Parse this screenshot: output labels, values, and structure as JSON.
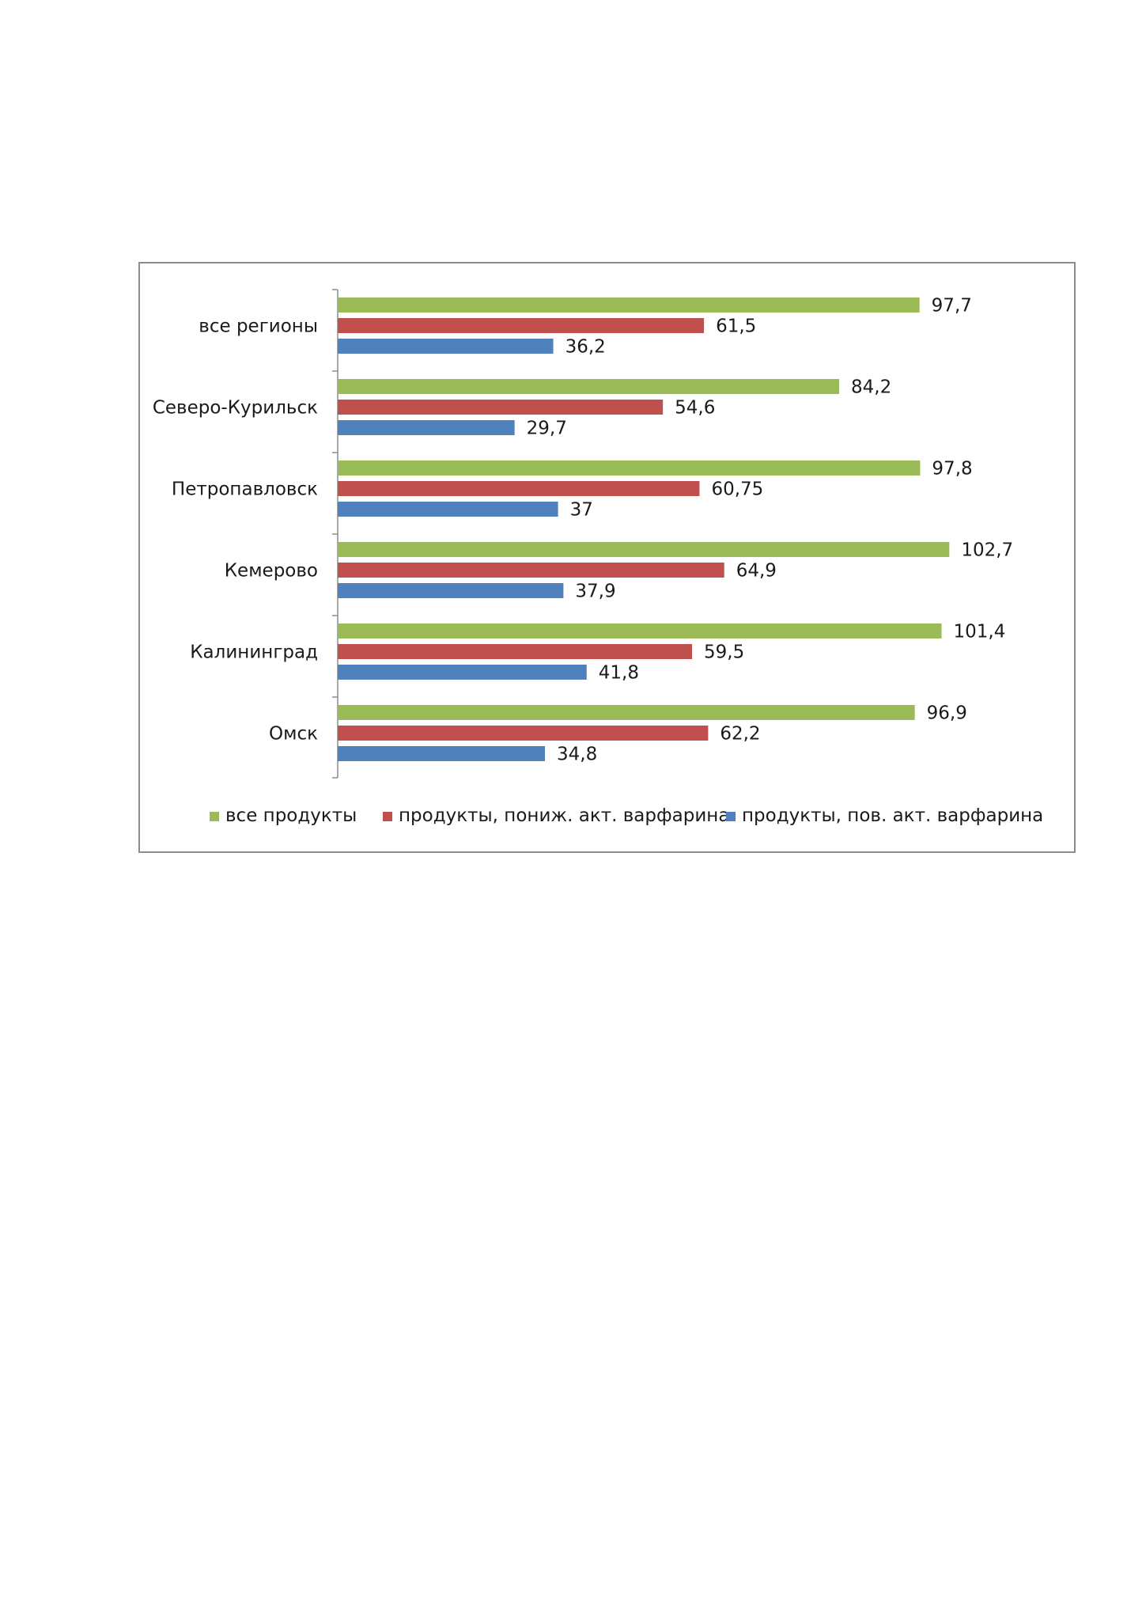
{
  "chart_data": {
    "type": "bar",
    "orientation": "horizontal",
    "categories": [
      "все регионы",
      "Северо-Курильск",
      "Петропавловск",
      "Кемерово",
      "Калининград",
      "Омск"
    ],
    "series": [
      {
        "name": "все продукты",
        "color": "#9bbb59",
        "values": [
          97.7,
          84.2,
          97.8,
          102.7,
          101.4,
          96.9
        ],
        "labels": [
          "97,7",
          "84,2",
          "97,8",
          "102,7",
          "101,4",
          "96,9"
        ]
      },
      {
        "name": "продукты, пониж. акт. варфарина",
        "color": "#c0504d",
        "values": [
          61.5,
          54.6,
          60.75,
          64.9,
          59.5,
          62.2
        ],
        "labels": [
          "61,5",
          "54,6",
          "60,75",
          "64,9",
          "59,5",
          "62,2"
        ]
      },
      {
        "name": "продукты, пов. акт. варфарина",
        "color": "#4f81bd",
        "values": [
          36.2,
          29.7,
          37,
          37.9,
          41.8,
          34.8
        ],
        "labels": [
          "36,2",
          "29,7",
          "37",
          "37,9",
          "41,8",
          "34,8"
        ]
      }
    ],
    "xlim": [
      0,
      110
    ],
    "grid": false,
    "legend_position": "bottom"
  }
}
